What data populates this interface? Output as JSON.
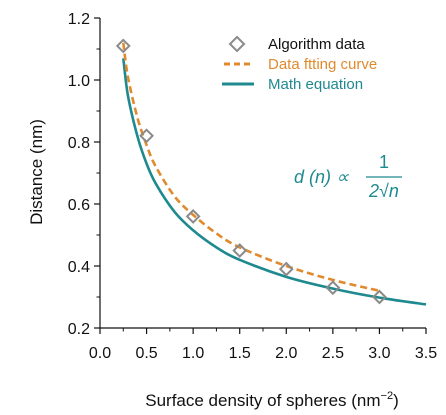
{
  "chart_data": {
    "type": "line",
    "xlabel": "Surface density of spheres (nm",
    "xlabel_sup": "−2",
    "xlabel_close": ")",
    "ylabel": "Distance (nm)",
    "xlim": [
      0.0,
      3.5
    ],
    "ylim": [
      0.2,
      1.2
    ],
    "xticks": [
      "0.0",
      "0.5",
      "1.0",
      "1.5",
      "2.0",
      "2.5",
      "3.0",
      "3.5"
    ],
    "yticks": [
      "0.2",
      "0.4",
      "0.6",
      "0.8",
      "1.0",
      "1.2"
    ],
    "grid": false,
    "legend_position": "top-right",
    "colors": {
      "algorithm": "#8a8a8a",
      "fitting": "#e08a2e",
      "math": "#1e8a8f",
      "axis": "#111111"
    },
    "series": [
      {
        "name": "Algorithm data",
        "kind": "scatter",
        "marker": "diamond",
        "x": [
          0.25,
          0.5,
          1.0,
          1.5,
          2.0,
          2.5,
          3.0
        ],
        "y": [
          1.11,
          0.82,
          0.56,
          0.45,
          0.39,
          0.33,
          0.3
        ]
      },
      {
        "name": "Data ftting curve",
        "kind": "line",
        "style": "dashed",
        "x": [
          0.25,
          0.3,
          0.4,
          0.5,
          0.6,
          0.8,
          1.0,
          1.25,
          1.5,
          2.0,
          2.5,
          3.0
        ],
        "y": [
          1.12,
          1.01,
          0.88,
          0.79,
          0.72,
          0.625,
          0.565,
          0.505,
          0.46,
          0.4,
          0.355,
          0.32
        ]
      },
      {
        "name": "Math equation",
        "kind": "line",
        "style": "solid",
        "x": [
          0.25,
          0.3,
          0.4,
          0.5,
          0.6,
          0.8,
          1.0,
          1.25,
          1.5,
          2.0,
          2.5,
          3.0,
          3.5
        ],
        "y": [
          1.07,
          0.95,
          0.82,
          0.73,
          0.665,
          0.575,
          0.515,
          0.46,
          0.42,
          0.365,
          0.327,
          0.298,
          0.276
        ]
      }
    ],
    "annotation": {
      "lhs": "d (n) ∝",
      "numerator": "1",
      "denominator": "2√n"
    }
  }
}
